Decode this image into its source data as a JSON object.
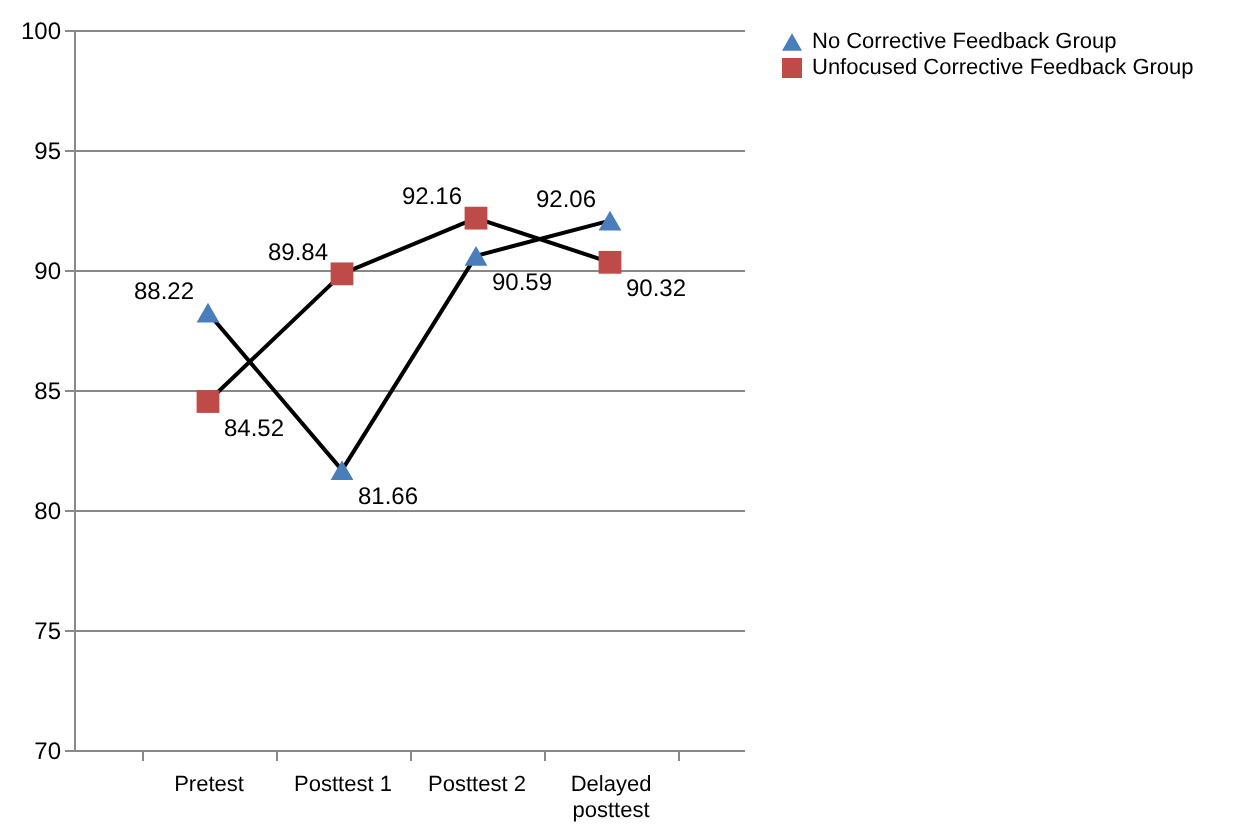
{
  "chart_data": {
    "type": "line",
    "categories": [
      "Pretest",
      "Posttest 1",
      "Posttest 2",
      "Delayed posttest"
    ],
    "series": [
      {
        "name": "No Corrective Feedback Group",
        "color": "#4a7ebb",
        "marker": "triangle",
        "values": [
          88.22,
          81.66,
          90.59,
          92.06
        ]
      },
      {
        "name": "Unfocused Corrective Feedback Group",
        "color": "#be4b48",
        "marker": "square",
        "values": [
          84.52,
          89.84,
          92.16,
          90.32
        ]
      }
    ],
    "ylim": [
      70,
      100
    ],
    "yticks": [
      70,
      75,
      80,
      85,
      90,
      95,
      100
    ],
    "grid": "y",
    "legend": "right",
    "data_labels": true
  }
}
